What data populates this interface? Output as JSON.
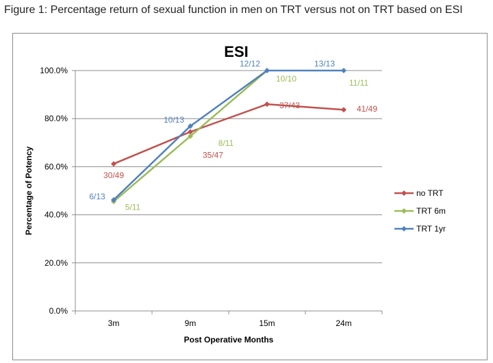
{
  "figure": {
    "caption": "Figure 1: Percentage return of sexual function in men on TRT versus not on TRT based on ESI"
  },
  "chart_data": {
    "type": "line",
    "title": "ESI",
    "xlabel": "Post Operative Months",
    "ylabel": "Percentage of Potency",
    "categories": [
      "3m",
      "9m",
      "15m",
      "24m"
    ],
    "ylim": [
      0,
      100
    ],
    "yticks": [
      "0.0%",
      "20.0%",
      "40.0%",
      "60.0%",
      "80.0%",
      "100.0%"
    ],
    "grid": true,
    "legend_position": "right",
    "series": [
      {
        "name": "no TRT",
        "color": "#c0504d",
        "values": [
          61.2,
          74.5,
          86.0,
          83.7
        ],
        "labels": [
          "30/49",
          "35/47",
          "37/43",
          "41/49"
        ]
      },
      {
        "name": "TRT 6m",
        "color": "#9bbb59",
        "values": [
          45.5,
          72.7,
          100.0,
          null
        ],
        "labels": [
          "5/11",
          "8/11",
          "10/10",
          "11/11"
        ]
      },
      {
        "name": "TRT 1yr",
        "color": "#4f81bd",
        "values": [
          46.2,
          76.9,
          100.0,
          100.0
        ],
        "labels": [
          "6/13",
          "10/13",
          "12/12",
          "13/13"
        ]
      }
    ]
  }
}
